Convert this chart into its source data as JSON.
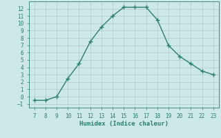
{
  "x": [
    7,
    8,
    9,
    10,
    11,
    12,
    13,
    14,
    15,
    16,
    17,
    18,
    19,
    20,
    21,
    22,
    23
  ],
  "y": [
    -0.5,
    -0.5,
    0.0,
    2.5,
    4.5,
    7.5,
    9.5,
    11.0,
    12.2,
    12.2,
    12.2,
    10.5,
    7.0,
    5.5,
    4.5,
    3.5,
    3.0
  ],
  "xlabel": "Humidex (Indice chaleur)",
  "xlim": [
    6.5,
    23.5
  ],
  "ylim": [
    -1.5,
    13.0
  ],
  "xticks": [
    7,
    8,
    9,
    10,
    11,
    12,
    13,
    14,
    15,
    16,
    17,
    18,
    19,
    20,
    21,
    22,
    23
  ],
  "yticks": [
    -1,
    0,
    1,
    2,
    3,
    4,
    5,
    6,
    7,
    8,
    9,
    10,
    11,
    12
  ],
  "line_color": "#2d7d6e",
  "marker": "+",
  "bg_color": "#cce8e8",
  "grid_color": "#b0c8c8",
  "tick_fontsize": 5.5,
  "xlabel_fontsize": 6.5,
  "linewidth": 1.0,
  "markersize": 4,
  "markeredgewidth": 1.0
}
